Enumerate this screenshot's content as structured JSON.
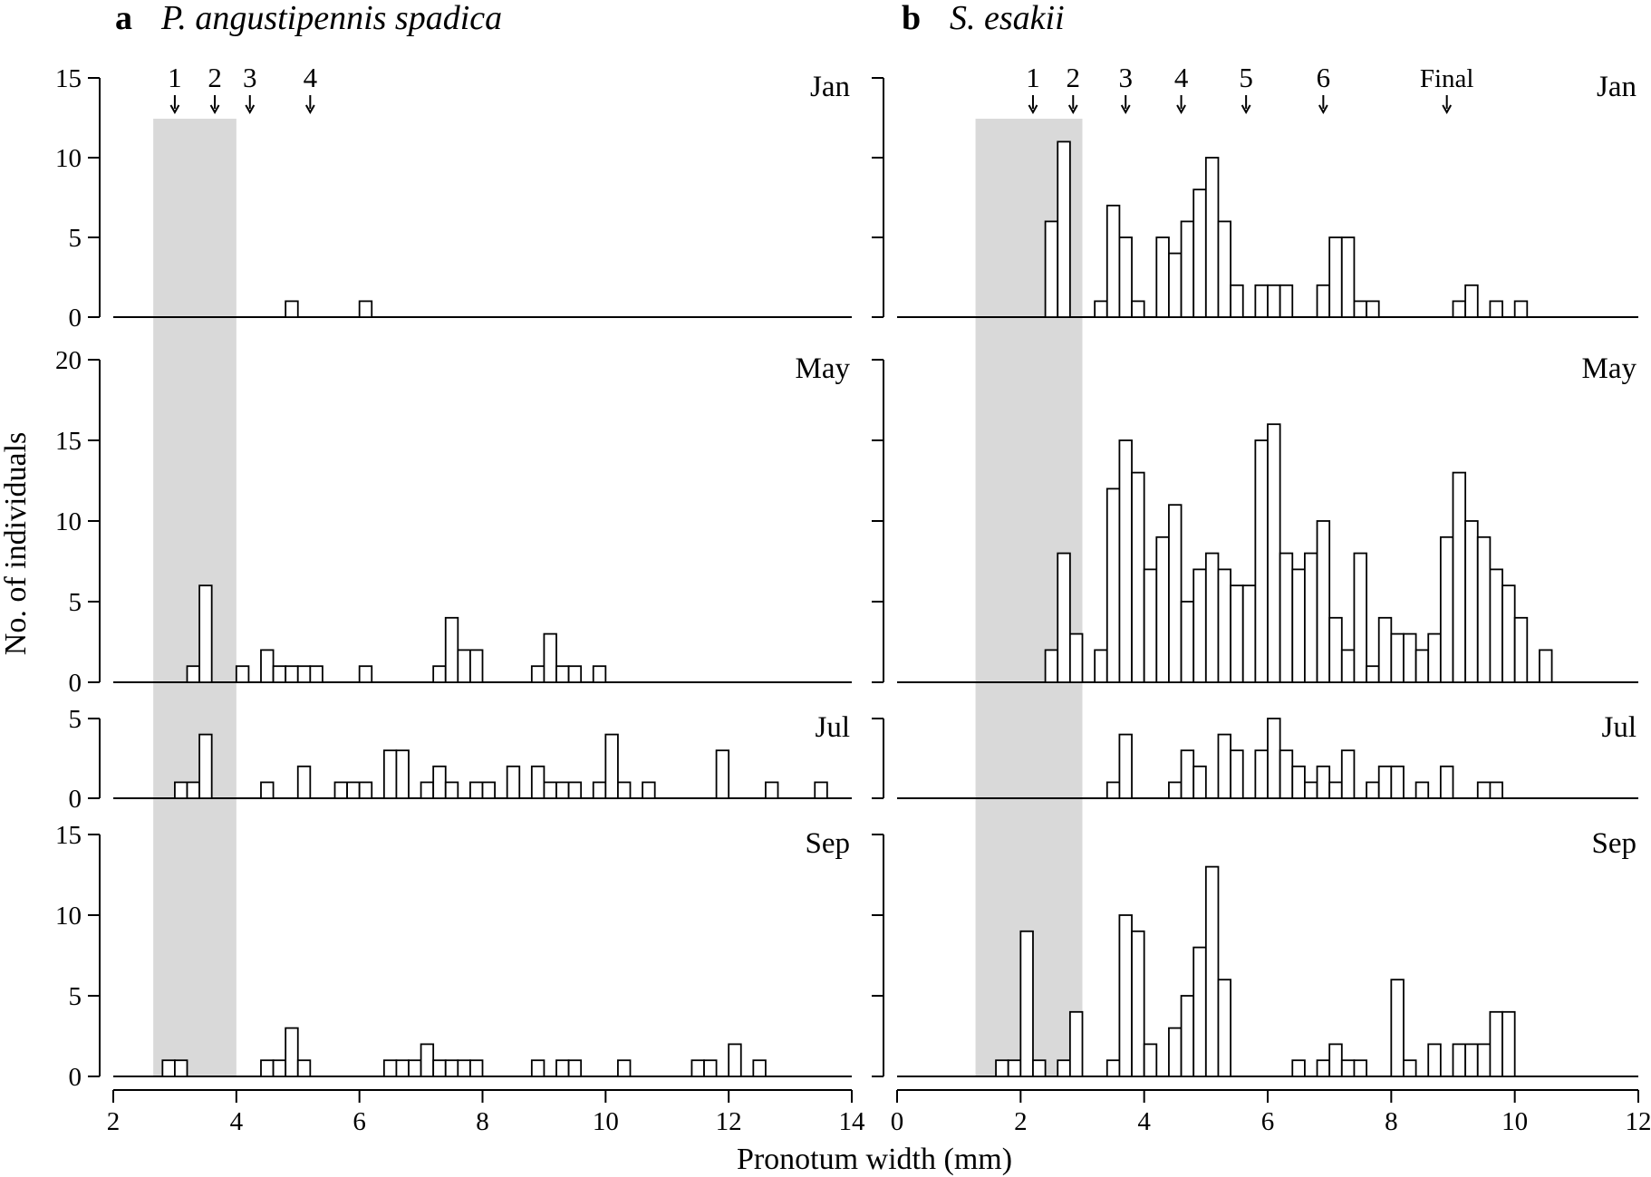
{
  "figure": {
    "ylabel": "No. of individuals",
    "xlabel": "Pronotum width (mm)",
    "shade_color": "#d9d9d9",
    "bar_fill": "#ffffff",
    "bar_stroke": "#000000"
  },
  "chart_data": [
    {
      "type": "bar",
      "letter": "a",
      "title": "P. angustipennis spadica",
      "xlim": [
        2,
        14
      ],
      "xticks": [
        2,
        4,
        6,
        8,
        10,
        12,
        14
      ],
      "bin_width": 0.2,
      "shaded_range": [
        2.65,
        4.0
      ],
      "instar_markers": [
        {
          "label": "1",
          "x": 3.0
        },
        {
          "label": "2",
          "x": 3.65
        },
        {
          "label": "3",
          "x": 4.22
        },
        {
          "label": "4",
          "x": 5.2
        }
      ],
      "panels": [
        {
          "month": "Jan",
          "ylim": [
            0,
            15
          ],
          "yticks": [
            0,
            5,
            10,
            15
          ],
          "x": [
            4.9,
            6.1
          ],
          "counts": [
            1,
            1
          ]
        },
        {
          "month": "May",
          "ylim": [
            0,
            20
          ],
          "yticks": [
            0,
            5,
            10,
            15,
            20
          ],
          "x": [
            3.3,
            3.5,
            4.1,
            4.5,
            4.7,
            4.9,
            5.1,
            5.3,
            6.1,
            7.3,
            7.5,
            7.7,
            7.9,
            8.9,
            9.1,
            9.3,
            9.5,
            9.9
          ],
          "counts": [
            1,
            6,
            1,
            2,
            1,
            1,
            1,
            1,
            1,
            1,
            4,
            2,
            2,
            1,
            3,
            1,
            1,
            1
          ]
        },
        {
          "month": "Jul",
          "ylim": [
            0,
            5
          ],
          "yticks": [
            0,
            5
          ],
          "x": [
            3.1,
            3.3,
            3.5,
            4.5,
            5.1,
            5.7,
            5.9,
            6.1,
            6.5,
            6.7,
            7.1,
            7.3,
            7.5,
            7.9,
            8.1,
            8.5,
            8.9,
            9.1,
            9.3,
            9.5,
            9.9,
            10.1,
            10.3,
            10.7,
            11.9,
            12.7,
            13.5
          ],
          "counts": [
            1,
            1,
            4,
            1,
            2,
            1,
            1,
            1,
            3,
            3,
            1,
            2,
            1,
            1,
            1,
            2,
            2,
            1,
            1,
            1,
            1,
            4,
            1,
            1,
            3,
            1,
            1
          ]
        },
        {
          "month": "Sep",
          "ylim": [
            0,
            15
          ],
          "yticks": [
            0,
            5,
            10,
            15
          ],
          "x": [
            2.9,
            3.1,
            4.5,
            4.7,
            4.9,
            5.1,
            6.5,
            6.7,
            6.9,
            7.1,
            7.3,
            7.5,
            7.7,
            7.9,
            8.9,
            9.3,
            9.5,
            10.3,
            11.5,
            11.7,
            12.1,
            12.5
          ],
          "counts": [
            1,
            1,
            1,
            1,
            3,
            1,
            1,
            1,
            1,
            2,
            1,
            1,
            1,
            1,
            1,
            1,
            1,
            1,
            1,
            1,
            2,
            1
          ]
        }
      ]
    },
    {
      "type": "bar",
      "letter": "b",
      "title": "S. esakii",
      "xlim": [
        0,
        12
      ],
      "xticks": [
        0,
        2,
        4,
        6,
        8,
        10,
        12
      ],
      "bin_width": 0.2,
      "shaded_range": [
        1.27,
        3.0
      ],
      "instar_markers": [
        {
          "label": "1",
          "x": 2.2
        },
        {
          "label": "2",
          "x": 2.85
        },
        {
          "label": "3",
          "x": 3.7
        },
        {
          "label": "4",
          "x": 4.6
        },
        {
          "label": "5",
          "x": 5.65
        },
        {
          "label": "6",
          "x": 6.9
        },
        {
          "label": "Final",
          "x": 8.9
        }
      ],
      "panels": [
        {
          "month": "Jan",
          "ylim": [
            0,
            15
          ],
          "yticks": [
            0,
            5,
            10,
            15
          ],
          "x": [
            2.5,
            2.7,
            3.3,
            3.5,
            3.7,
            3.9,
            4.3,
            4.5,
            4.7,
            4.9,
            5.1,
            5.3,
            5.5,
            5.9,
            6.1,
            6.3,
            6.9,
            7.1,
            7.3,
            7.5,
            7.7,
            9.1,
            9.3,
            9.7,
            10.1
          ],
          "counts": [
            6,
            11,
            1,
            7,
            5,
            1,
            5,
            4,
            6,
            8,
            10,
            6,
            2,
            2,
            2,
            2,
            2,
            5,
            5,
            1,
            1,
            1,
            2,
            1,
            1
          ]
        },
        {
          "month": "May",
          "ylim": [
            0,
            20
          ],
          "yticks": [
            0,
            5,
            10,
            15,
            20
          ],
          "x": [
            2.5,
            2.7,
            2.9,
            3.3,
            3.5,
            3.7,
            3.9,
            4.1,
            4.3,
            4.5,
            4.7,
            4.9,
            5.1,
            5.3,
            5.5,
            5.7,
            5.9,
            6.1,
            6.3,
            6.5,
            6.7,
            6.9,
            7.1,
            7.3,
            7.5,
            7.7,
            7.9,
            8.1,
            8.3,
            8.5,
            8.7,
            8.9,
            9.1,
            9.3,
            9.5,
            9.7,
            9.9,
            10.1,
            10.5
          ],
          "counts": [
            2,
            8,
            3,
            2,
            12,
            15,
            13,
            7,
            9,
            11,
            5,
            7,
            8,
            7,
            6,
            6,
            15,
            16,
            8,
            7,
            8,
            10,
            4,
            2,
            8,
            1,
            4,
            3,
            3,
            2,
            3,
            9,
            13,
            10,
            9,
            7,
            6,
            4,
            2
          ]
        },
        {
          "month": "Jul",
          "ylim": [
            0,
            5
          ],
          "yticks": [
            0,
            5
          ],
          "x": [
            3.5,
            3.7,
            4.5,
            4.7,
            4.9,
            5.3,
            5.5,
            5.9,
            6.1,
            6.3,
            6.5,
            6.7,
            6.9,
            7.1,
            7.3,
            7.7,
            7.9,
            8.1,
            8.5,
            8.9,
            9.5,
            9.7
          ],
          "counts": [
            1,
            4,
            1,
            3,
            2,
            4,
            3,
            3,
            5,
            3,
            2,
            1,
            2,
            1,
            3,
            1,
            2,
            2,
            1,
            2,
            1,
            1
          ]
        },
        {
          "month": "Sep",
          "ylim": [
            0,
            15
          ],
          "yticks": [
            0,
            5,
            10,
            15
          ],
          "x": [
            1.7,
            1.9,
            2.1,
            2.3,
            2.7,
            2.9,
            3.5,
            3.7,
            3.9,
            4.1,
            4.5,
            4.7,
            4.9,
            5.1,
            5.3,
            6.5,
            6.9,
            7.1,
            7.3,
            7.5,
            8.1,
            8.3,
            8.7,
            9.1,
            9.3,
            9.5,
            9.7,
            9.9
          ],
          "counts": [
            1,
            1,
            9,
            1,
            1,
            4,
            1,
            10,
            9,
            2,
            3,
            5,
            8,
            13,
            6,
            1,
            1,
            2,
            1,
            1,
            6,
            1,
            2,
            2,
            2,
            2,
            4,
            4
          ]
        }
      ]
    }
  ]
}
